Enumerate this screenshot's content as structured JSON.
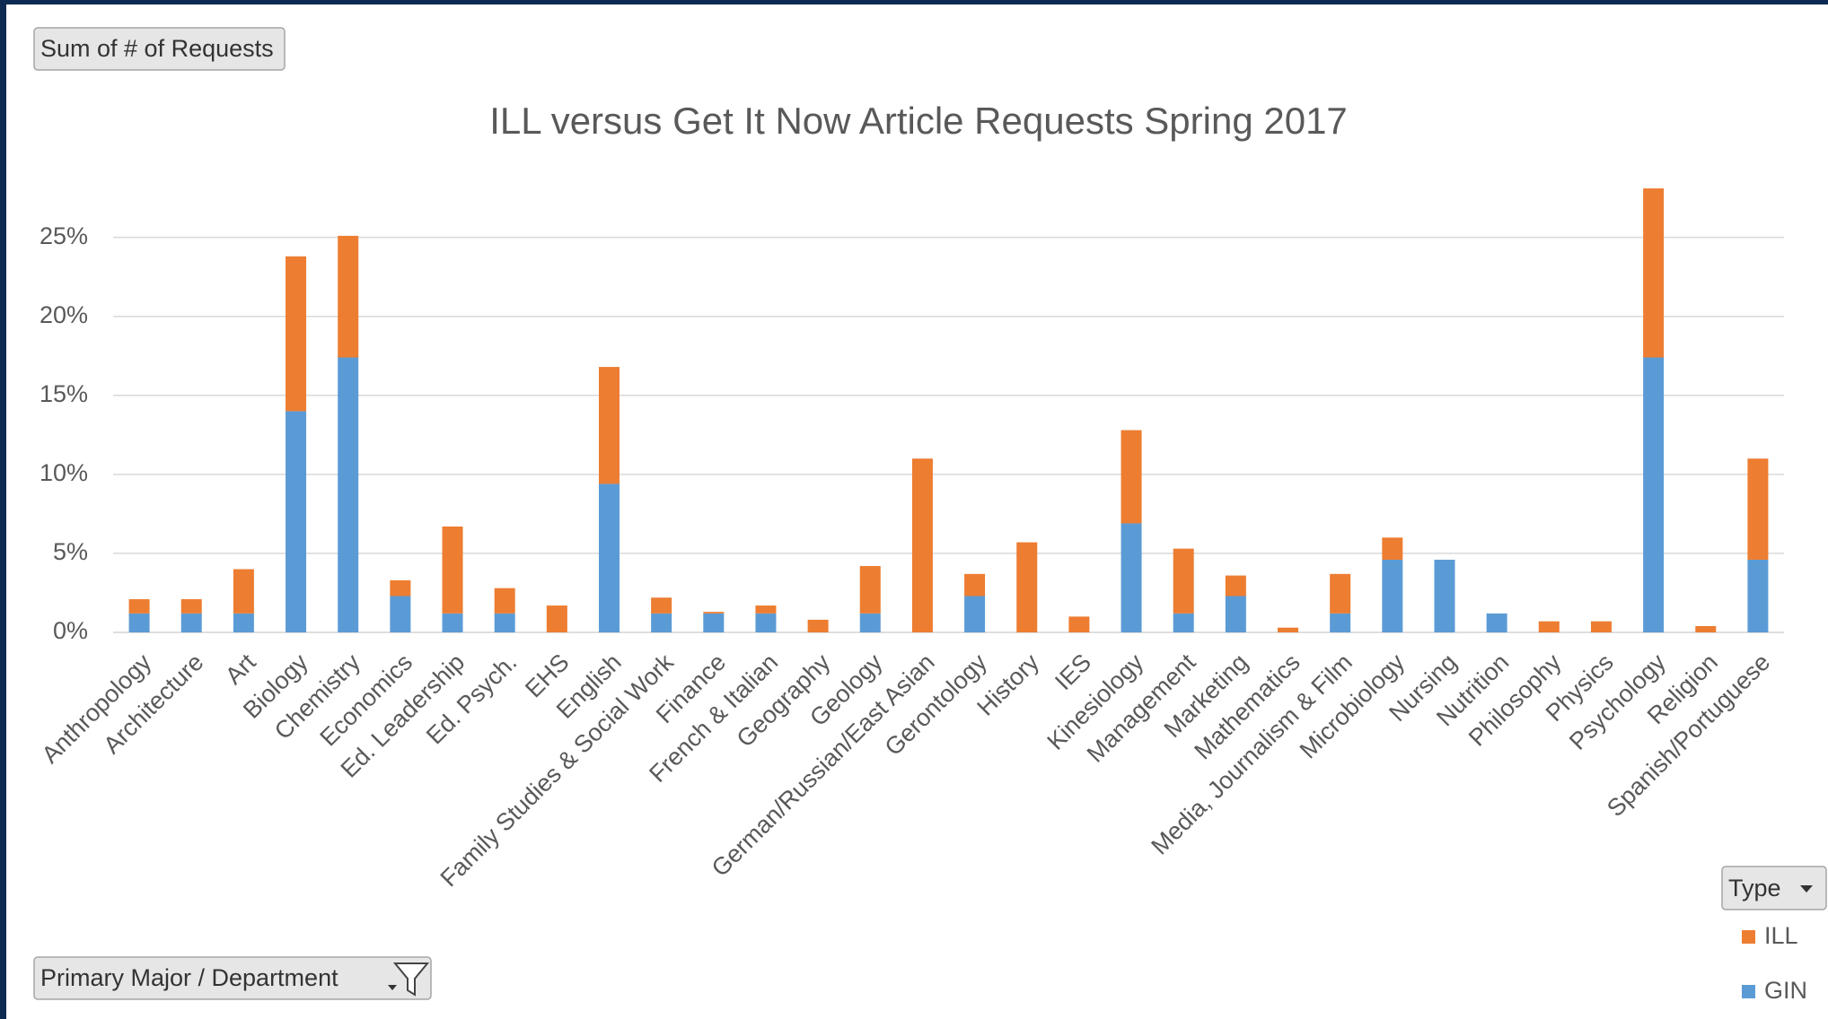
{
  "ui": {
    "value_field": "Sum of # of Requests",
    "axis_field": "Primary Major / Department",
    "legend_field": "Type"
  },
  "chart_data": {
    "type": "stacked_bar",
    "title": "ILL versus Get It Now Article Requests Spring 2017",
    "categories": [
      "Anthropology",
      "Architecture",
      "Art",
      "Biology",
      "Chemistry",
      "Economics",
      "Ed. Leadership",
      "Ed. Psych.",
      "EHS",
      "English",
      "Family Studies & Social Work",
      "Finance",
      "French & Italian",
      "Geography",
      "Geology",
      "German/Russian/East Asian",
      "Gerontology",
      "History",
      "IES",
      "Kinesiology",
      "Management",
      "Marketing",
      "Mathematics",
      "Media, Journalism & Film",
      "Microbiology",
      "Nursing",
      "Nutrition",
      "Philosophy",
      "Physics",
      "Psychology",
      "Religion",
      "Spanish/Portuguese"
    ],
    "series": [
      {
        "name": "GIN",
        "color": "#5b9bd5",
        "values": [
          1.2,
          1.2,
          1.2,
          14.0,
          17.4,
          2.3,
          1.2,
          1.2,
          0,
          9.4,
          1.2,
          1.2,
          1.2,
          0,
          1.2,
          0,
          2.3,
          0,
          0,
          6.9,
          1.2,
          2.3,
          0,
          1.2,
          4.6,
          4.6,
          1.2,
          0,
          0,
          17.4,
          0,
          4.6
        ]
      },
      {
        "name": "ILL",
        "color": "#ed7d31",
        "values": [
          0.9,
          0.9,
          2.8,
          9.8,
          7.7,
          1.0,
          5.5,
          1.6,
          1.7,
          7.4,
          1.0,
          0.1,
          0.5,
          0.8,
          3.0,
          11.0,
          1.4,
          5.7,
          1.0,
          5.9,
          4.1,
          1.3,
          0.3,
          2.5,
          1.4,
          0,
          0,
          0.7,
          0.7,
          10.7,
          0.4,
          6.4
        ]
      }
    ],
    "ylim": [
      0,
      28.5
    ],
    "yticks": [
      {
        "value": 0,
        "label": "0%"
      },
      {
        "value": 5,
        "label": "5%"
      },
      {
        "value": 10,
        "label": "10%"
      },
      {
        "value": 15,
        "label": "15%"
      },
      {
        "value": 20,
        "label": "20%"
      },
      {
        "value": 25,
        "label": "25%"
      }
    ],
    "grid": true,
    "legend": "right"
  }
}
